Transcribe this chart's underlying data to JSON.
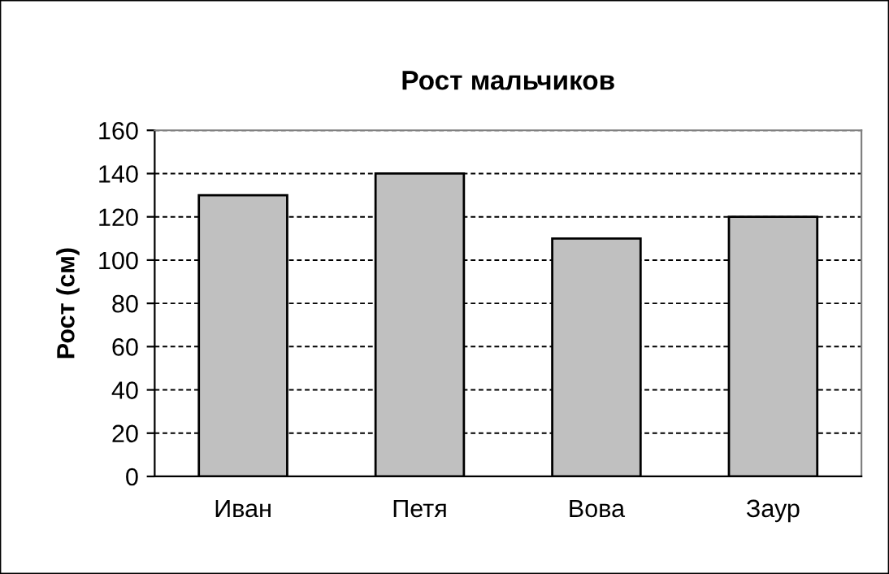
{
  "chart_data": {
    "type": "bar",
    "title": "Рост мальчиков",
    "ylabel": "Рост (см)",
    "categories": [
      "Иван",
      "Петя",
      "Вова",
      "Заур"
    ],
    "values": [
      130,
      140,
      110,
      120
    ],
    "color": "#c0c0c0",
    "ylim": [
      0,
      160
    ],
    "yticks": [
      0,
      20,
      40,
      60,
      80,
      100,
      120,
      140,
      160
    ],
    "grid": "y"
  }
}
